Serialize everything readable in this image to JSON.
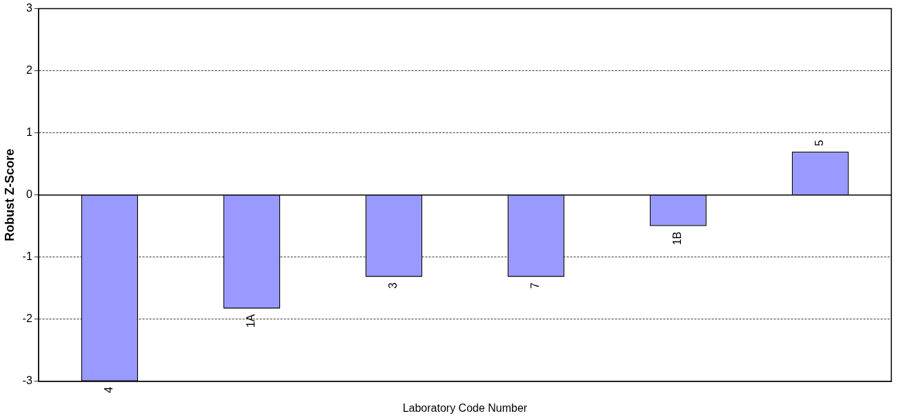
{
  "chart_data": {
    "type": "bar",
    "xlabel": "Laboratory Code Number",
    "ylabel": "Robust Z-Score",
    "categories": [
      "4",
      "1A",
      "3",
      "7",
      "1B",
      "5"
    ],
    "values": [
      -3,
      -1.83,
      -1.32,
      -1.32,
      -0.5,
      0.7
    ],
    "color": "#9999ff",
    "ylim": [
      -3,
      3
    ],
    "yticks": [
      -3,
      -2,
      -1,
      0,
      1,
      2,
      3
    ],
    "grid": "y",
    "legend": false,
    "tick_labels": "y"
  }
}
